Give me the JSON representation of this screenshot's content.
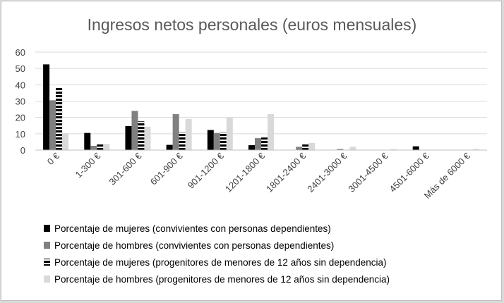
{
  "chart_data": {
    "type": "bar",
    "title": "Ingresos netos personales (euros mensuales)",
    "xlabel": "",
    "ylabel": "",
    "ylim": [
      0,
      60
    ],
    "yticks": [
      "0",
      "10",
      "20",
      "30",
      "40",
      "50",
      "60"
    ],
    "grid": true,
    "legend_position": "bottom",
    "categories": [
      "0 €",
      "1-300 €",
      "301-600 €",
      "601-900 €",
      "901-1200 €",
      "1201-1800 €",
      "1801-2400 €",
      "2401-3000 €",
      "3001-4500 €",
      "4501-6000 €",
      "Más de 6000 €"
    ],
    "series": [
      {
        "name": "Porcentaje de mujeres (convivientes con personas dependientes)",
        "style": "solid",
        "color": "#000000",
        "values": [
          52.5,
          10.5,
          14.7,
          3.2,
          12.3,
          3.0,
          0,
          0,
          0,
          2.3,
          0
        ]
      },
      {
        "name": "Porcentaje de hombres (convivientes con personas dependientes)",
        "style": "solid",
        "color": "#808080",
        "values": [
          30.5,
          2.6,
          24.0,
          22.0,
          10.5,
          7.3,
          2.0,
          0.7,
          0,
          0,
          0
        ]
      },
      {
        "name": "Porcentaje de mujeres (progenitores de menores de 12 años sin dependencia)",
        "style": "dashed",
        "color": "#000000",
        "values": [
          38.5,
          3.8,
          17.6,
          11.0,
          11.0,
          7.7,
          4.0,
          0,
          0,
          0,
          0
        ]
      },
      {
        "name": "Porcentaje de hombres (progenitores de menores de 12 años sin dependencia)",
        "style": "solid",
        "color": "#d9d9d9",
        "values": [
          10.3,
          3.7,
          14.3,
          19.0,
          20.0,
          22.0,
          4.4,
          2.0,
          0.6,
          0,
          0.6
        ]
      }
    ]
  }
}
